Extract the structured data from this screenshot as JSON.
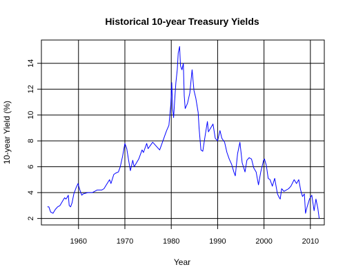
{
  "chart_data": {
    "type": "line",
    "title": "Historical 10-year Treasury Yields",
    "xlabel": "Year",
    "ylabel": "10-year Yield (%)",
    "xlim": [
      1952,
      2013
    ],
    "ylim": [
      1.5,
      15.8
    ],
    "grid": true,
    "x_ticks": [
      1960,
      1970,
      1980,
      1990,
      2000,
      2010
    ],
    "y_ticks": [
      2,
      4,
      6,
      8,
      10,
      12,
      14
    ],
    "line_color": "#0000ff",
    "series": [
      {
        "x": [
          1953.3,
          1953.6,
          1954.0,
          1954.5,
          1955.0,
          1955.5,
          1956.0,
          1956.5,
          1957.0,
          1957.3,
          1957.5,
          1957.8,
          1958.0,
          1958.3,
          1958.6,
          1959.0,
          1959.5,
          1959.9,
          1960.3,
          1960.7,
          1961.0,
          1962.0,
          1963.0,
          1964.0,
          1965.0,
          1965.5,
          1966.0,
          1966.7,
          1967.0,
          1967.6,
          1968.0,
          1968.6,
          1969.0,
          1969.5,
          1970.0,
          1970.4,
          1970.8,
          1971.2,
          1971.7,
          1972.0,
          1973.0,
          1973.7,
          1974.0,
          1974.7,
          1975.0,
          1976.0,
          1977.0,
          1977.5,
          1978.0,
          1978.8,
          1979.0,
          1979.5,
          1979.9,
          1980.1,
          1980.3,
          1980.5,
          1980.8,
          1981.0,
          1981.3,
          1981.5,
          1981.8,
          1982.0,
          1982.3,
          1982.6,
          1982.8,
          1983.0,
          1983.5,
          1984.0,
          1984.5,
          1984.9,
          1985.3,
          1985.8,
          1986.0,
          1986.4,
          1986.8,
          1987.3,
          1987.8,
          1988.0,
          1989.0,
          1989.5,
          1990.0,
          1990.5,
          1990.9,
          1991.5,
          1992.0,
          1992.5,
          1993.0,
          1993.5,
          1993.8,
          1994.3,
          1994.8,
          1995.3,
          1995.9,
          1996.3,
          1996.8,
          1997.3,
          1997.8,
          1998.3,
          1998.8,
          1999.3,
          1999.9,
          2000.1,
          2000.5,
          2000.9,
          2001.3,
          2001.8,
          2002.3,
          2002.9,
          2003.3,
          2003.5,
          2003.8,
          2004.3,
          2004.8,
          2005.3,
          2005.8,
          2006.5,
          2007.0,
          2007.5,
          2007.9,
          2008.3,
          2008.7,
          2008.95,
          2009.3,
          2009.8,
          2010.3,
          2010.8,
          2011.2,
          2011.6,
          2011.9
        ],
        "y": [
          2.9,
          2.9,
          2.5,
          2.4,
          2.7,
          2.9,
          3.0,
          3.3,
          3.6,
          3.5,
          3.6,
          3.8,
          3.0,
          2.9,
          3.2,
          3.9,
          4.4,
          4.7,
          4.2,
          3.8,
          3.9,
          4.0,
          4.0,
          4.2,
          4.2,
          4.3,
          4.6,
          5.0,
          4.7,
          5.4,
          5.5,
          5.6,
          6.0,
          6.8,
          7.8,
          7.4,
          6.5,
          5.7,
          6.5,
          6.0,
          6.6,
          7.3,
          7.1,
          7.8,
          7.4,
          7.9,
          7.5,
          7.3,
          7.8,
          8.6,
          8.8,
          9.2,
          10.8,
          12.5,
          10.5,
          9.8,
          11.5,
          12.5,
          13.5,
          14.8,
          15.3,
          13.8,
          13.5,
          14.0,
          11.5,
          10.5,
          10.9,
          11.7,
          13.5,
          11.9,
          11.3,
          10.2,
          9.0,
          7.3,
          7.2,
          8.4,
          9.5,
          8.7,
          9.3,
          8.2,
          8.0,
          8.8,
          8.2,
          7.9,
          7.1,
          6.6,
          6.2,
          5.6,
          5.3,
          7.0,
          7.9,
          6.3,
          5.6,
          6.5,
          6.7,
          6.6,
          5.9,
          5.6,
          4.6,
          5.6,
          6.5,
          6.6,
          6.1,
          5.1,
          5.0,
          4.5,
          5.1,
          3.9,
          3.6,
          3.5,
          4.3,
          4.1,
          4.2,
          4.3,
          4.5,
          5.0,
          4.7,
          5.0,
          4.2,
          3.7,
          3.9,
          2.4,
          2.9,
          3.5,
          3.8,
          2.6,
          3.5,
          2.8,
          2.0
        ]
      }
    ]
  }
}
